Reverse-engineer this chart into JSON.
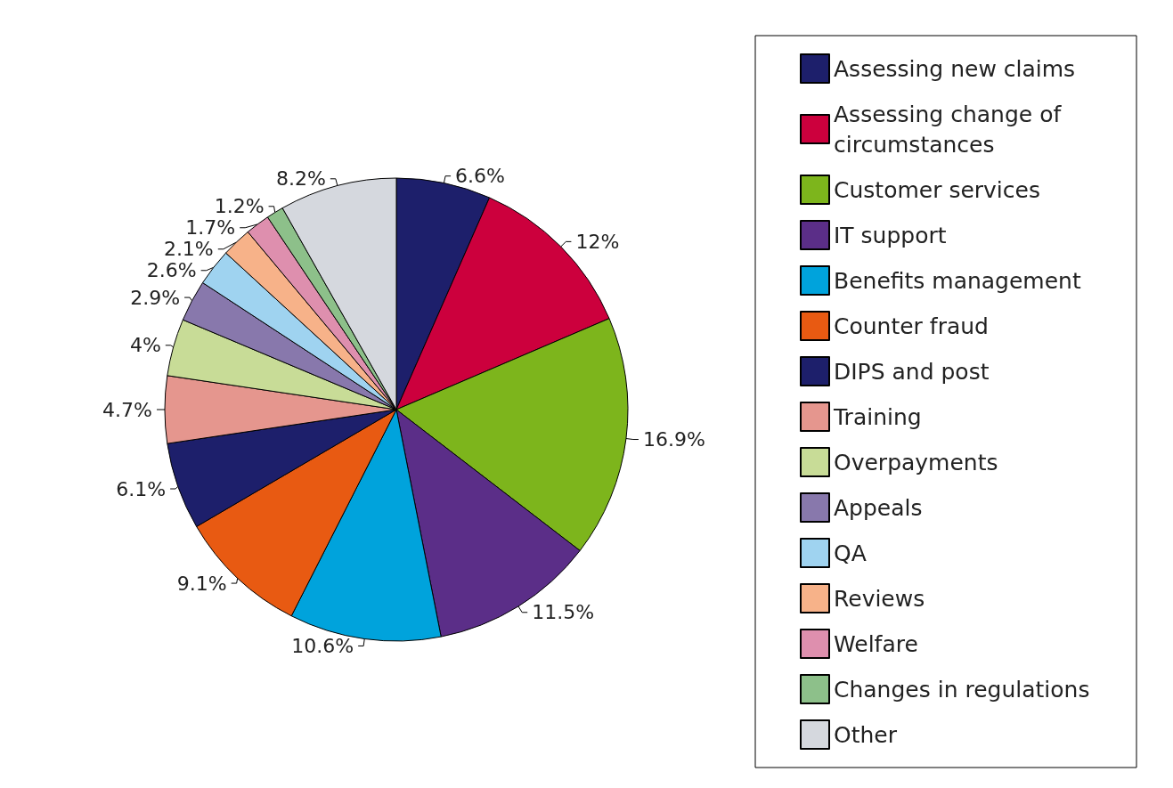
{
  "chart_data": {
    "type": "pie",
    "categories": [
      "Assessing new claims",
      "Assessing change of circumstances",
      "Customer services",
      "IT support",
      "Benefits management",
      "Counter fraud",
      "DIPS and post",
      "Training",
      "Overpayments",
      "Appeals",
      "QA",
      "Reviews",
      "Welfare",
      "Changes in regulations",
      "Other"
    ],
    "values": [
      6.6,
      12,
      16.9,
      11.5,
      10.6,
      9.1,
      6.1,
      4.7,
      4,
      2.9,
      2.6,
      2.1,
      1.7,
      1.2,
      8.2
    ],
    "value_labels": [
      "6.6%",
      "12%",
      "16.9%",
      "11.5%",
      "10.6%",
      "9.1%",
      "6.1%",
      "4.7%",
      "4%",
      "2.9%",
      "2.6%",
      "2.1%",
      "1.7%",
      "1.2%",
      "8.2%"
    ],
    "colors": [
      "#1d1f6b",
      "#cc003d",
      "#7db51c",
      "#5b2e88",
      "#00a3dc",
      "#e85a12",
      "#1d1f6b",
      "#e5968e",
      "#c8dc97",
      "#8878ac",
      "#9fd3f0",
      "#f7b289",
      "#de8fae",
      "#8dc08a",
      "#d5d8de"
    ],
    "legend": "right"
  }
}
